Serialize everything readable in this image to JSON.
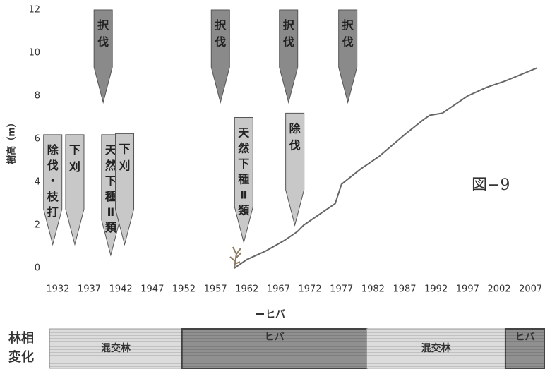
{
  "chart_data": {
    "type": "line",
    "y_label": "樹高（m）",
    "figure_label": "図−9",
    "xlim": [
      1930,
      2009
    ],
    "xticks": [
      1932,
      1937,
      1942,
      1947,
      1952,
      1957,
      1962,
      1967,
      1972,
      1977,
      1982,
      1987,
      1992,
      1997,
      2002,
      2007
    ],
    "ylim": [
      0,
      12
    ],
    "yticks": [
      0,
      2,
      4,
      6,
      8,
      10,
      12
    ],
    "series": [
      {
        "name": "ヒバ",
        "color": "#666666",
        "x": [
          1960,
          1962,
          1965,
          1968,
          1970,
          1971,
          1976,
          1977,
          1980,
          1983,
          1987,
          1990,
          1991,
          1993,
          1997,
          2000,
          2003,
          2008
        ],
        "values": [
          0,
          0.4,
          0.8,
          1.3,
          1.7,
          2.0,
          3.0,
          3.9,
          4.6,
          5.2,
          6.2,
          6.9,
          7.1,
          7.2,
          8.0,
          8.4,
          8.7,
          9.3
        ]
      }
    ],
    "annotations": [
      {
        "label": "除伐・枝打",
        "x": 1931.2,
        "y": [
          6.2,
          1.1
        ],
        "color": "#c8c8c8"
      },
      {
        "label": "下刈",
        "x": 1934.7,
        "y": [
          6.2,
          1.1
        ],
        "color": "#c8c8c8"
      },
      {
        "label": "天然下種Ⅱ類",
        "x": 1940.4,
        "y": [
          6.2,
          0.6
        ],
        "color": "#c8c8c8"
      },
      {
        "label": "下刈",
        "x": 1942.6,
        "y": [
          6.25,
          1.1
        ],
        "color": "#c8c8c8"
      },
      {
        "label": "択伐",
        "x": 1939.2,
        "y": [
          12,
          7.7
        ],
        "color": "#8a8a8a"
      },
      {
        "label": "択伐",
        "x": 1957.8,
        "y": [
          12,
          7.7
        ],
        "color": "#8a8a8a"
      },
      {
        "label": "天然下種Ⅱ類",
        "x": 1961.5,
        "y": [
          7.0,
          1.2
        ],
        "color": "#c8c8c8"
      },
      {
        "label": "除伐",
        "x": 1969.6,
        "y": [
          7.2,
          2.0
        ],
        "color": "#c8c8c8"
      },
      {
        "label": "択伐",
        "x": 1968.6,
        "y": [
          12,
          7.7
        ],
        "color": "#8a8a8a"
      },
      {
        "label": "択伐",
        "x": 1978.0,
        "y": [
          12,
          7.7
        ],
        "color": "#8a8a8a"
      }
    ],
    "phase_title": "林相変化",
    "phases": [
      {
        "label": "混交林",
        "start": 1930.7,
        "end": 1951.7,
        "color": "#dcdcdc"
      },
      {
        "label": "ヒバ",
        "start": 1951.7,
        "end": 1981.0,
        "color": "#909090"
      },
      {
        "label": "混交林",
        "start": 1981.0,
        "end": 2003.0,
        "color": "#dcdcdc"
      },
      {
        "label": "ヒバ",
        "start": 2003.0,
        "end": 2010.0,
        "color": "#909090"
      }
    ]
  }
}
